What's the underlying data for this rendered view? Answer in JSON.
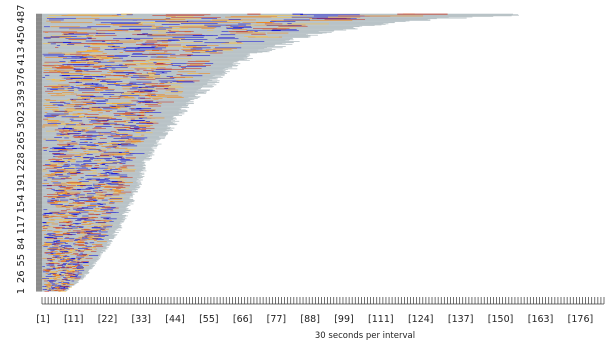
{
  "chart_data": {
    "type": "heatmap",
    "title": "",
    "xlabel": "30 seconds per interval",
    "ylabel": "",
    "x_tick_labels": [
      "[1]",
      "[11]",
      "[22]",
      "[33]",
      "[44]",
      "[55]",
      "[66]",
      "[77]",
      "[88]",
      "[99]",
      "[111]",
      "[124]",
      "[137]",
      "[150]",
      "[163]",
      "[176]"
    ],
    "x_tick_values": [
      1,
      11,
      22,
      33,
      44,
      55,
      66,
      77,
      88,
      99,
      111,
      124,
      137,
      150,
      163,
      176
    ],
    "y_tick_labels": [
      "1",
      "26",
      "55",
      "84",
      "117",
      "154",
      "191",
      "228",
      "265",
      "302",
      "339",
      "376",
      "413",
      "450",
      "487"
    ],
    "y_tick_values": [
      1,
      26,
      55,
      84,
      117,
      154,
      191,
      228,
      265,
      302,
      339,
      376,
      413,
      450,
      487
    ],
    "xlim": [
      1,
      184
    ],
    "ylim": [
      1,
      487
    ],
    "row_count": 487,
    "row_length_profile": {
      "rows": [
        1,
        26,
        55,
        84,
        117,
        154,
        191,
        228,
        265,
        302,
        339,
        376,
        413,
        450,
        470,
        480,
        487
      ],
      "intervals": [
        8,
        14,
        18,
        22,
        26,
        29,
        32,
        34,
        39,
        44,
        50,
        58,
        68,
        88,
        110,
        135,
        160
      ]
    },
    "colors": {
      "background_cells": "#b9c3c7",
      "blue": "#1a1ad6",
      "orange": "#f08a1e",
      "yellow": "#f7c34a",
      "red": "#c83a2a",
      "row_stub": "#8a8a8a"
    }
  }
}
